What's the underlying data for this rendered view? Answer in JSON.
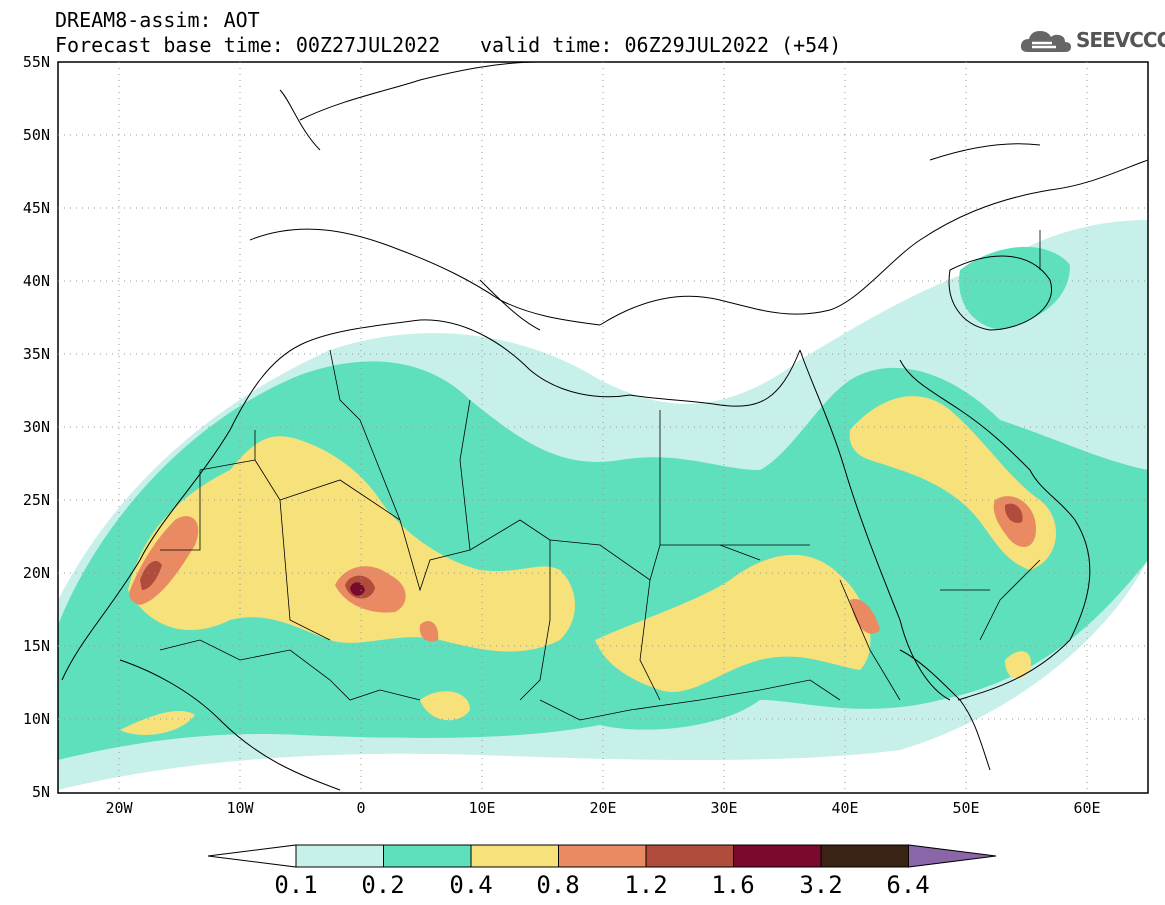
{
  "header": {
    "title": "DREAM8-assim: AOT",
    "base_time": "Forecast base time: 00Z27JUL2022",
    "valid_time": "valid time: 06Z29JUL2022 (+54)"
  },
  "logo": {
    "text": "SEEVCCC",
    "icon": "cloud-icon"
  },
  "map": {
    "lon_range": [
      -25,
      65
    ],
    "lat_range": [
      5,
      55
    ],
    "grid": "dotted",
    "lat_labels": [
      "55N",
      "50N",
      "45N",
      "40N",
      "35N",
      "30N",
      "25N",
      "20N",
      "15N",
      "10N",
      "5N"
    ],
    "lon_labels": [
      "20W",
      "10W",
      "0",
      "10E",
      "20E",
      "30E",
      "40E",
      "50E",
      "60E"
    ]
  },
  "colorbar": {
    "levels": [
      "0.1",
      "0.2",
      "0.4",
      "0.8",
      "1.2",
      "1.6",
      "3.2",
      "6.4"
    ],
    "colors": [
      "#ffffff",
      "#c7f0ea",
      "#5fe0bd",
      "#f7e17b",
      "#e98a62",
      "#b04c3c",
      "#7a0a2c",
      "#3a2314",
      "#8a66a8"
    ]
  }
}
